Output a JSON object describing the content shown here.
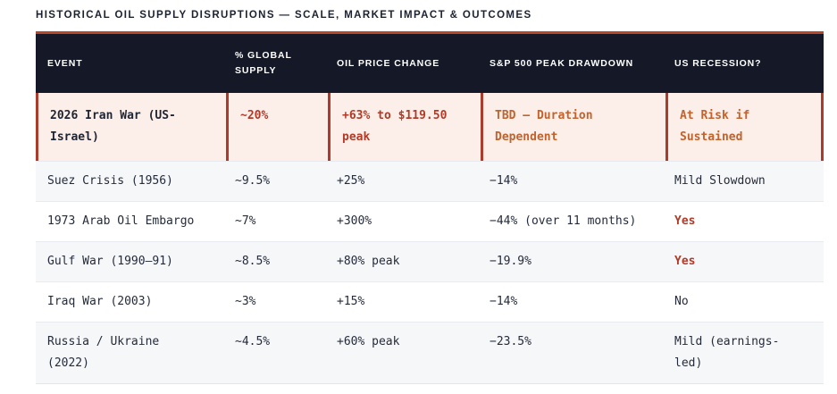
{
  "page_title": "HISTORICAL OIL SUPPLY DISRUPTIONS — SCALE, MARKET IMPACT & OUTCOMES",
  "colors": {
    "accent_red": "#ad3b2b",
    "accent_orange": "#c2622d",
    "header_bg": "#141827",
    "highlight_bg": "#fcefe9",
    "body_text": "#252b3a"
  },
  "table": {
    "columns": {
      "event": "EVENT",
      "supply": "% GLOBAL SUPPLY",
      "oil": "OIL PRICE CHANGE",
      "drawdown": "S&P 500 PEAK DRAWDOWN",
      "recession": "US RECESSION?"
    },
    "highlight_row": {
      "event": "2026 Iran War (US-Israel)",
      "supply": "~20%",
      "oil": "+63% to $119.50 peak",
      "drawdown": "TBD — Duration Dependent",
      "recession": "At Risk if Sustained"
    },
    "rows": [
      {
        "event": "Suez Crisis (1956)",
        "supply": "~9.5%",
        "oil": "+25%",
        "drawdown": "−14%",
        "recession": "Mild Slowdown"
      },
      {
        "event": "1973 Arab Oil Embargo",
        "supply": "~7%",
        "oil": "+300%",
        "drawdown": "−44% (over 11 months)",
        "recession": "Yes"
      },
      {
        "event": "Gulf War (1990–91)",
        "supply": "~8.5%",
        "oil": "+80% peak",
        "drawdown": "−19.9%",
        "recession": "Yes"
      },
      {
        "event": "Iraq War (2003)",
        "supply": "~3%",
        "oil": "+15%",
        "drawdown": "−14%",
        "recession": "No"
      },
      {
        "event": "Russia / Ukraine (2022)",
        "supply": "~4.5%",
        "oil": "+60% peak",
        "drawdown": "−23.5%",
        "recession": "Mild (earnings-led)"
      }
    ]
  }
}
